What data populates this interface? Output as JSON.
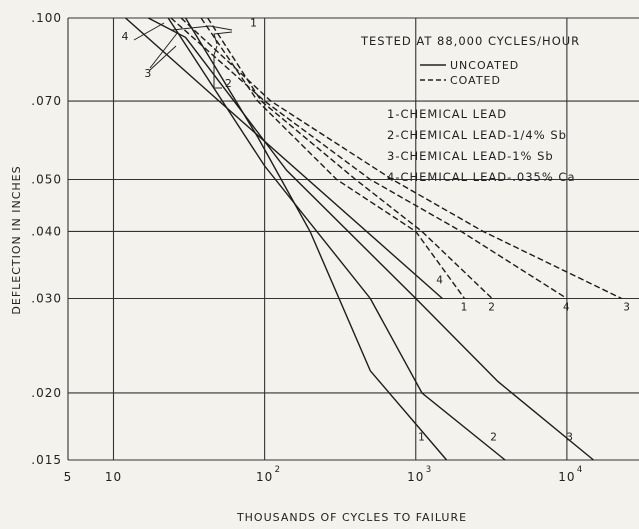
{
  "chart_data": {
    "type": "line",
    "xscale": "log",
    "yscale": "log",
    "xlim": [
      5,
      30000
    ],
    "ylim": [
      0.015,
      0.1
    ],
    "grid": true,
    "title": "TESTED AT 88,000 CYCLES/HOUR",
    "xlabel": "THOUSANDS OF CYCLES TO FAILURE",
    "ylabel": "DEFLECTION IN INCHES",
    "x_ticks": [
      {
        "value": 5,
        "label": "5"
      },
      {
        "value": 10,
        "label": "10"
      },
      {
        "value": 100,
        "label": "10",
        "sup": "2"
      },
      {
        "value": 1000,
        "label": "10",
        "sup": "3"
      },
      {
        "value": 10000,
        "label": "10",
        "sup": "4"
      }
    ],
    "y_ticks": [
      {
        "value": 0.1,
        "label": ".100"
      },
      {
        "value": 0.07,
        "label": ".070"
      },
      {
        "value": 0.05,
        "label": ".050"
      },
      {
        "value": 0.04,
        "label": ".040"
      },
      {
        "value": 0.03,
        "label": ".030"
      },
      {
        "value": 0.02,
        "label": ".020"
      },
      {
        "value": 0.015,
        "label": ".015"
      }
    ],
    "legend": {
      "style_entries": [
        {
          "style": "solid",
          "label": "UNCOATED"
        },
        {
          "style": "dashed",
          "label": "COATED"
        }
      ],
      "material_entries": [
        "1-CHEMICAL LEAD",
        "2-CHEMICAL LEAD-1/4% Sb",
        "3-CHEMICAL LEAD-1% Sb",
        "4-CHEMICAL LEAD-.035% Ca"
      ]
    },
    "series": [
      {
        "id": "1",
        "style": "solid",
        "label": "1",
        "label_at": [
          1100,
          0.0163
        ],
        "points": [
          [
            30,
            0.1
          ],
          [
            90,
            0.06
          ],
          [
            200,
            0.04
          ],
          [
            500,
            0.022
          ],
          [
            1600,
            0.015
          ]
        ]
      },
      {
        "id": "2",
        "style": "solid",
        "label": "2",
        "label_at": [
          3300,
          0.0163
        ],
        "points": [
          [
            23,
            0.1
          ],
          [
            100,
            0.053
          ],
          [
            500,
            0.03
          ],
          [
            1100,
            0.02
          ],
          [
            3900,
            0.015
          ]
        ]
      },
      {
        "id": "3",
        "style": "solid",
        "label": "3",
        "label_at": [
          10500,
          0.0163
        ],
        "points": [
          [
            17,
            0.1
          ],
          [
            30,
            0.092
          ],
          [
            140,
            0.052
          ],
          [
            1000,
            0.03
          ],
          [
            3500,
            0.021
          ],
          [
            15000,
            0.015
          ]
        ]
      },
      {
        "id": "4",
        "style": "solid",
        "label": "4",
        "label_at": [
          1450,
          0.032
        ],
        "points": [
          [
            12,
            0.1
          ],
          [
            50,
            0.07
          ],
          [
            1500,
            0.03
          ]
        ]
      },
      {
        "id": "1c",
        "style": "dashed",
        "label": "1",
        "label_at": [
          2100,
          0.0285
        ],
        "points": [
          [
            38,
            0.1
          ],
          [
            90,
            0.07
          ],
          [
            300,
            0.05
          ],
          [
            1000,
            0.04
          ],
          [
            2100,
            0.03
          ]
        ]
      },
      {
        "id": "2c",
        "style": "dashed",
        "label": "2",
        "label_at": [
          3200,
          0.0285
        ],
        "points": [
          [
            42,
            0.1
          ],
          [
            95,
            0.07
          ],
          [
            400,
            0.05
          ],
          [
            1100,
            0.04
          ],
          [
            3200,
            0.03
          ]
        ]
      },
      {
        "id": "4c",
        "style": "dashed",
        "label": "4",
        "label_at": [
          10000,
          0.0285
        ],
        "points": [
          [
            24,
            0.1
          ],
          [
            100,
            0.07
          ],
          [
            500,
            0.05
          ],
          [
            2000,
            0.04
          ],
          [
            10000,
            0.03
          ]
        ]
      },
      {
        "id": "3c",
        "style": "dashed",
        "label": "3",
        "label_at": [
          25000,
          0.0285
        ],
        "points": [
          [
            28,
            0.1
          ],
          [
            110,
            0.07
          ],
          [
            700,
            0.05
          ],
          [
            2800,
            0.04
          ],
          [
            23000,
            0.03
          ]
        ]
      }
    ],
    "annotations": [
      {
        "text": "1",
        "at": [
          85,
          0.0965
        ]
      },
      {
        "text": "2",
        "at": [
          58,
          0.0744
        ]
      },
      {
        "text": "3",
        "at": [
          17,
          0.0776
        ]
      },
      {
        "text": "4",
        "at": [
          12,
          0.091
        ]
      }
    ]
  }
}
